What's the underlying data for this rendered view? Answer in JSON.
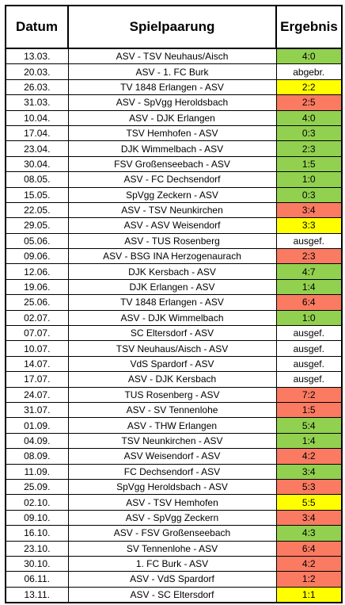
{
  "headers": {
    "date": "Datum",
    "match": "Spielpaarung",
    "result": "Ergebnis"
  },
  "colors": {
    "win": "#92d050",
    "loss": "#fa7a62",
    "draw": "#ffff00",
    "none": "#ffffff"
  },
  "rows": [
    {
      "date": "13.03.",
      "match": "ASV - TSV Neuhaus/Aisch",
      "result": "4:0",
      "status": "win"
    },
    {
      "date": "20.03.",
      "match": "ASV - 1. FC Burk",
      "result": "abgebr.",
      "status": "none"
    },
    {
      "date": "26.03.",
      "match": "TV 1848 Erlangen - ASV",
      "result": "2:2",
      "status": "draw"
    },
    {
      "date": "31.03.",
      "match": "ASV - SpVgg Heroldsbach",
      "result": "2:5",
      "status": "loss"
    },
    {
      "date": "10.04.",
      "match": "ASV - DJK Erlangen",
      "result": "4:0",
      "status": "win"
    },
    {
      "date": "17.04.",
      "match": "TSV Hemhofen - ASV",
      "result": "0:3",
      "status": "win"
    },
    {
      "date": "23.04.",
      "match": "DJK Wimmelbach - ASV",
      "result": "2:3",
      "status": "win"
    },
    {
      "date": "30.04.",
      "match": "FSV Großenseebach - ASV",
      "result": "1:5",
      "status": "win"
    },
    {
      "date": "08.05.",
      "match": "ASV - FC Dechsendorf",
      "result": "1:0",
      "status": "win"
    },
    {
      "date": "15.05.",
      "match": "SpVgg Zeckern - ASV",
      "result": "0:3",
      "status": "win"
    },
    {
      "date": "22.05.",
      "match": "ASV - TSV Neunkirchen",
      "result": "3:4",
      "status": "loss"
    },
    {
      "date": "29.05.",
      "match": "ASV - ASV Weisendorf",
      "result": "3:3",
      "status": "draw"
    },
    {
      "date": "05.06.",
      "match": "ASV - TUS Rosenberg",
      "result": "ausgef.",
      "status": "none"
    },
    {
      "date": "09.06.",
      "match": "ASV - BSG INA Herzogenaurach",
      "result": "2:3",
      "status": "loss"
    },
    {
      "date": "12.06.",
      "match": "DJK Kersbach - ASV",
      "result": "4:7",
      "status": "win"
    },
    {
      "date": "19.06.",
      "match": "DJK Erlangen - ASV",
      "result": "1:4",
      "status": "win"
    },
    {
      "date": "25.06.",
      "match": "TV 1848 Erlangen - ASV",
      "result": "6:4",
      "status": "loss"
    },
    {
      "date": "02.07.",
      "match": "ASV - DJK Wimmelbach",
      "result": "1:0",
      "status": "win"
    },
    {
      "date": "07.07.",
      "match": "SC Eltersdorf - ASV",
      "result": "ausgef.",
      "status": "none"
    },
    {
      "date": "10.07.",
      "match": "TSV Neuhaus/Aisch - ASV",
      "result": "ausgef.",
      "status": "none"
    },
    {
      "date": "14.07.",
      "match": "VdS Spardorf - ASV",
      "result": "ausgef.",
      "status": "none"
    },
    {
      "date": "17.07.",
      "match": "ASV - DJK Kersbach",
      "result": "ausgef.",
      "status": "none"
    },
    {
      "date": "24.07.",
      "match": "TUS Rosenberg - ASV",
      "result": "7:2",
      "status": "loss"
    },
    {
      "date": "31.07.",
      "match": "ASV - SV Tennenlohe",
      "result": "1:5",
      "status": "loss"
    },
    {
      "date": "01.09.",
      "match": "ASV - THW Erlangen",
      "result": "5:4",
      "status": "win"
    },
    {
      "date": "04.09.",
      "match": "TSV Neunkirchen - ASV",
      "result": "1:4",
      "status": "win"
    },
    {
      "date": "08.09.",
      "match": "ASV Weisendorf - ASV",
      "result": "4:2",
      "status": "loss"
    },
    {
      "date": "11.09.",
      "match": "FC Dechsendorf - ASV",
      "result": "3:4",
      "status": "win"
    },
    {
      "date": "25.09.",
      "match": "SpVgg Heroldsbach - ASV",
      "result": "5:3",
      "status": "loss"
    },
    {
      "date": "02.10.",
      "match": "ASV - TSV Hemhofen",
      "result": "5:5",
      "status": "draw"
    },
    {
      "date": "09.10.",
      "match": "ASV - SpVgg Zeckern",
      "result": "3:4",
      "status": "loss"
    },
    {
      "date": "16.10.",
      "match": "ASV - FSV Großenseebach",
      "result": "4:3",
      "status": "win"
    },
    {
      "date": "23.10.",
      "match": "SV Tennenlohe - ASV",
      "result": "6:4",
      "status": "loss"
    },
    {
      "date": "30.10.",
      "match": "1. FC Burk - ASV",
      "result": "4:2",
      "status": "loss"
    },
    {
      "date": "06.11.",
      "match": "ASV - VdS Spardorf",
      "result": "1:2",
      "status": "loss"
    },
    {
      "date": "13.11.",
      "match": "ASV - SC Eltersdorf",
      "result": "1:1",
      "status": "draw"
    }
  ]
}
